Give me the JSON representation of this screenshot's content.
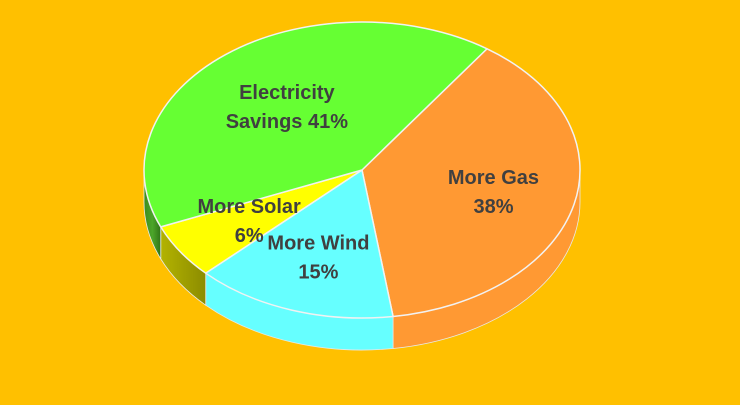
{
  "chart_data": {
    "type": "pie",
    "style": "3d",
    "background_color": "#FFC000",
    "title": "",
    "legend": "none",
    "slices": [
      {
        "label_lines": [
          "More Gas",
          "38%"
        ],
        "value": 38,
        "color": "#FF9933"
      },
      {
        "label_lines": [
          "More Wind",
          "15%"
        ],
        "value": 15,
        "color": "#66FFFF"
      },
      {
        "label_lines": [
          "More Solar",
          "6%"
        ],
        "value": 6,
        "color": "#FFFF00"
      },
      {
        "label_lines": [
          "Electricity",
          "Savings 41%"
        ],
        "value": 41,
        "color": "#66FF33"
      }
    ]
  }
}
